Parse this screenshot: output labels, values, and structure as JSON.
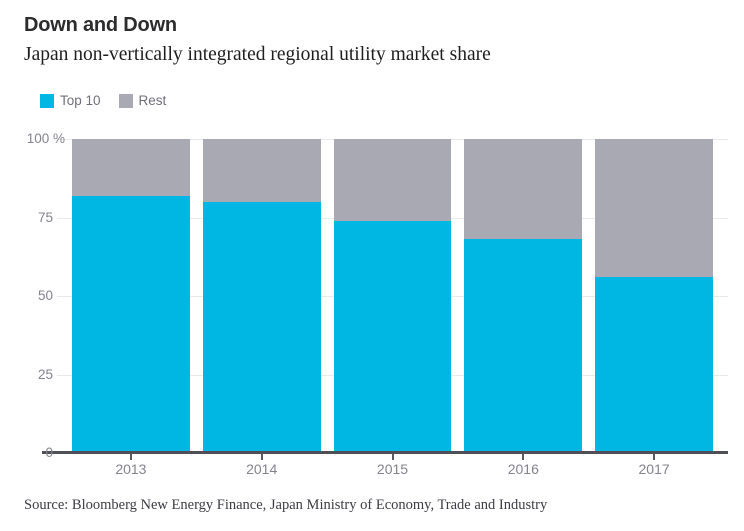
{
  "header": {
    "title": "Down and Down",
    "subtitle": "Japan non-vertically integrated regional utility market share"
  },
  "legend": [
    {
      "label": "Top 10",
      "color": "#00b7e4"
    },
    {
      "label": "Rest",
      "color": "#a9a9b4"
    }
  ],
  "chart_data": {
    "type": "bar",
    "stacked": true,
    "title": "Down and Down",
    "subtitle": "Japan non-vertically integrated regional utility market share",
    "categories": [
      "2013",
      "2014",
      "2015",
      "2016",
      "2017"
    ],
    "series": [
      {
        "name": "Top 10",
        "color": "#00b7e4",
        "values": [
          82,
          80,
          74,
          68,
          56
        ]
      },
      {
        "name": "Rest",
        "color": "#a9a9b4",
        "values": [
          18,
          20,
          26,
          32,
          44
        ]
      }
    ],
    "xlabel": "",
    "ylabel": "%",
    "ylim": [
      0,
      100
    ],
    "yticks": [
      0,
      25,
      50,
      75,
      100
    ],
    "ytick_labels": [
      "0",
      "25",
      "50",
      "75",
      "100 %"
    ],
    "grid": true,
    "legend_position": "top-left"
  },
  "source": "Source: Bloomberg New Energy Finance, Japan Ministry of Economy, Trade and Industry",
  "colors": {
    "accent_cyan": "#00b7e4",
    "neutral_gray": "#a9a9b4",
    "gridline": "#e9e9ec",
    "baseline": "#4f4f57",
    "axis_text": "#83838d",
    "title_text": "#2c2c2e",
    "source_text": "#3c3c42"
  }
}
